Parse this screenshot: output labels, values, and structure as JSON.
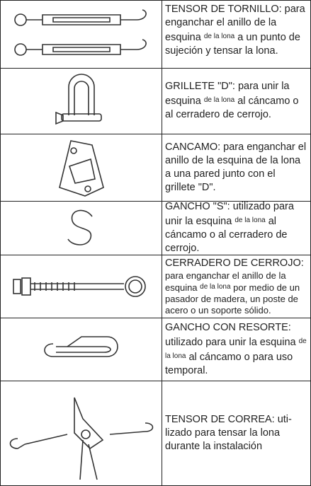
{
  "rows": [
    {
      "parts": [
        "TENSOR DE TORNILLO: para enganchar el anillo de la esquina ",
        "de la lona",
        " a un punto de sujeción y tensar la lona."
      ]
    },
    {
      "parts": [
        "GRILLETE \"D\": para unir la esquina ",
        "de la lona",
        " al cáncamo o al cerradero de cerrojo."
      ]
    },
    {
      "parts": [
        "CANCAMO: para enganchar el anillo de la esquina ",
        "de la lona",
        " a una pared junto con el grillete \"D\"."
      ]
    },
    {
      "parts": [
        "GANCHO \"S\":  utilizado para unir la esquina ",
        "de la lona",
        " al cáncamo o al cerradero de cerrojo."
      ]
    },
    {
      "parts": [
        "CERRADERO DE CERROJO:",
        "para enganchar el anillo de la esquina ",
        "de la lona",
        " por medio de un pasador de madera, un poste de acero o un soporte sólido."
      ]
    },
    {
      "parts": [
        "GANCHO CON RESORTE:",
        "utilizado para unir la esquina ",
        "de la lona",
        " al cáncamo o para uso temporal."
      ]
    },
    {
      "parts": [
        "TENSOR DE CORREA: uti-",
        "lizado para tensar ",
        "la lona",
        " durante la instalación"
      ]
    }
  ]
}
